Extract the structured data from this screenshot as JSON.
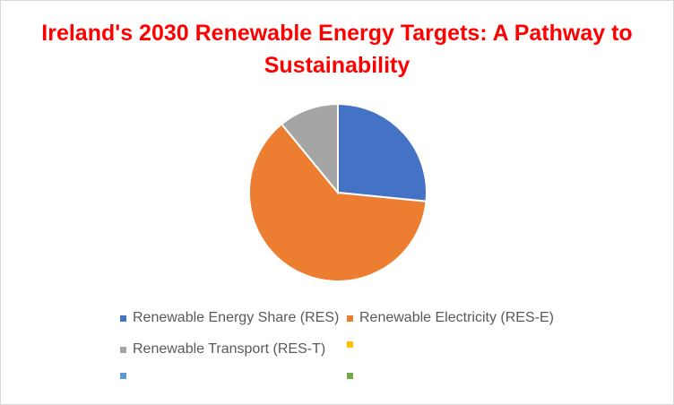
{
  "chart_data": {
    "type": "pie",
    "title": "Ireland's 2030 Renewable Energy Targets: A Pathway to Sustainability",
    "categories": [
      "Renewable Energy Share (RES)",
      "Renewable Electricity (RES-E)",
      "Renewable Transport (RES-T)",
      "",
      "",
      ""
    ],
    "values": [
      34,
      80,
      14,
      0,
      0,
      0
    ],
    "colors": [
      "#4472c4",
      "#ed7d31",
      "#a5a5a5",
      "#ffc000",
      "#5b9bd5",
      "#70ad47"
    ],
    "legend_position": "bottom"
  }
}
